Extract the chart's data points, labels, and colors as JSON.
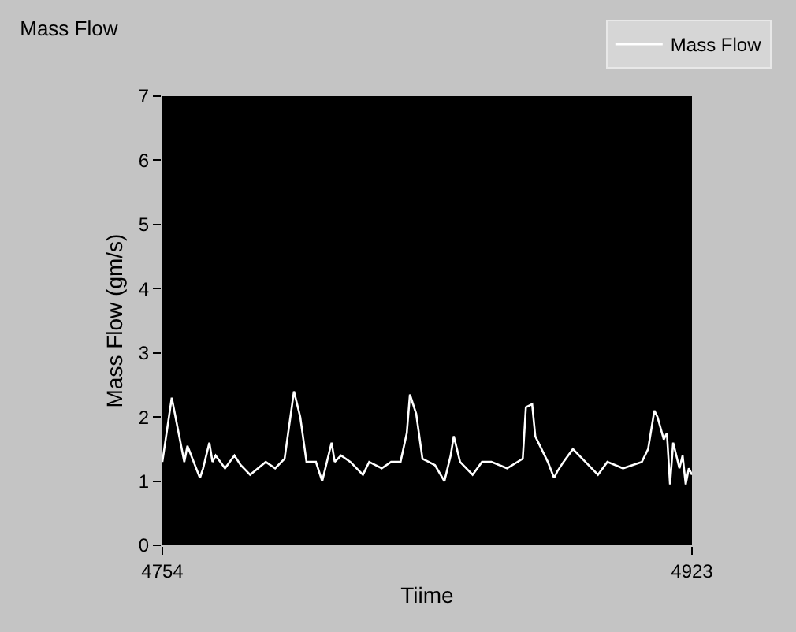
{
  "chart_data": {
    "type": "line",
    "title": "Mass Flow",
    "xlabel": "Tiime",
    "ylabel": "Mass Flow (gm/s)",
    "x": [
      4754,
      4757,
      4759,
      4761,
      4762,
      4764,
      4766,
      4767,
      4769,
      4770,
      4771,
      4774,
      4777,
      4779,
      4782,
      4787,
      4790,
      4793,
      4794,
      4796,
      4798,
      4800,
      4803,
      4805,
      4808,
      4809,
      4811,
      4814,
      4818,
      4820,
      4824,
      4827,
      4830,
      4832,
      4833,
      4835,
      4837,
      4839,
      4841,
      4844,
      4846,
      4847,
      4849,
      4853,
      4856,
      4859,
      4864,
      4869,
      4870,
      4872,
      4873,
      4875,
      4877,
      4879,
      4880,
      4882,
      4885,
      4889,
      4893,
      4896,
      4901,
      4907,
      4909,
      4911,
      4912,
      4914,
      4915,
      4916,
      4917,
      4919,
      4920,
      4921,
      4922,
      4923
    ],
    "series": [
      {
        "name": "Mass Flow",
        "color": "#ffffff",
        "values": [
          1.3,
          2.3,
          1.8,
          1.3,
          1.55,
          1.3,
          1.05,
          1.2,
          1.6,
          1.3,
          1.4,
          1.2,
          1.4,
          1.25,
          1.1,
          1.3,
          1.2,
          1.35,
          1.7,
          2.4,
          2.0,
          1.3,
          1.3,
          1.0,
          1.6,
          1.3,
          1.4,
          1.3,
          1.1,
          1.3,
          1.2,
          1.3,
          1.3,
          1.75,
          2.35,
          2.05,
          1.35,
          1.3,
          1.25,
          1.0,
          1.4,
          1.7,
          1.3,
          1.1,
          1.3,
          1.3,
          1.2,
          1.35,
          2.15,
          2.2,
          1.7,
          1.5,
          1.3,
          1.05,
          1.15,
          1.3,
          1.5,
          1.3,
          1.1,
          1.3,
          1.2,
          1.3,
          1.5,
          2.1,
          2.0,
          1.65,
          1.75,
          0.95,
          1.6,
          1.2,
          1.4,
          0.95,
          1.2,
          1.1
        ]
      }
    ],
    "xlim": [
      4754,
      4923
    ],
    "xticks": [
      4754,
      4923
    ],
    "ylim": [
      0,
      7
    ],
    "yticks": [
      0,
      1,
      2,
      3,
      4,
      5,
      6,
      7
    ],
    "grid": false,
    "legend": "top right",
    "marker": "none",
    "line_style": "solid"
  }
}
